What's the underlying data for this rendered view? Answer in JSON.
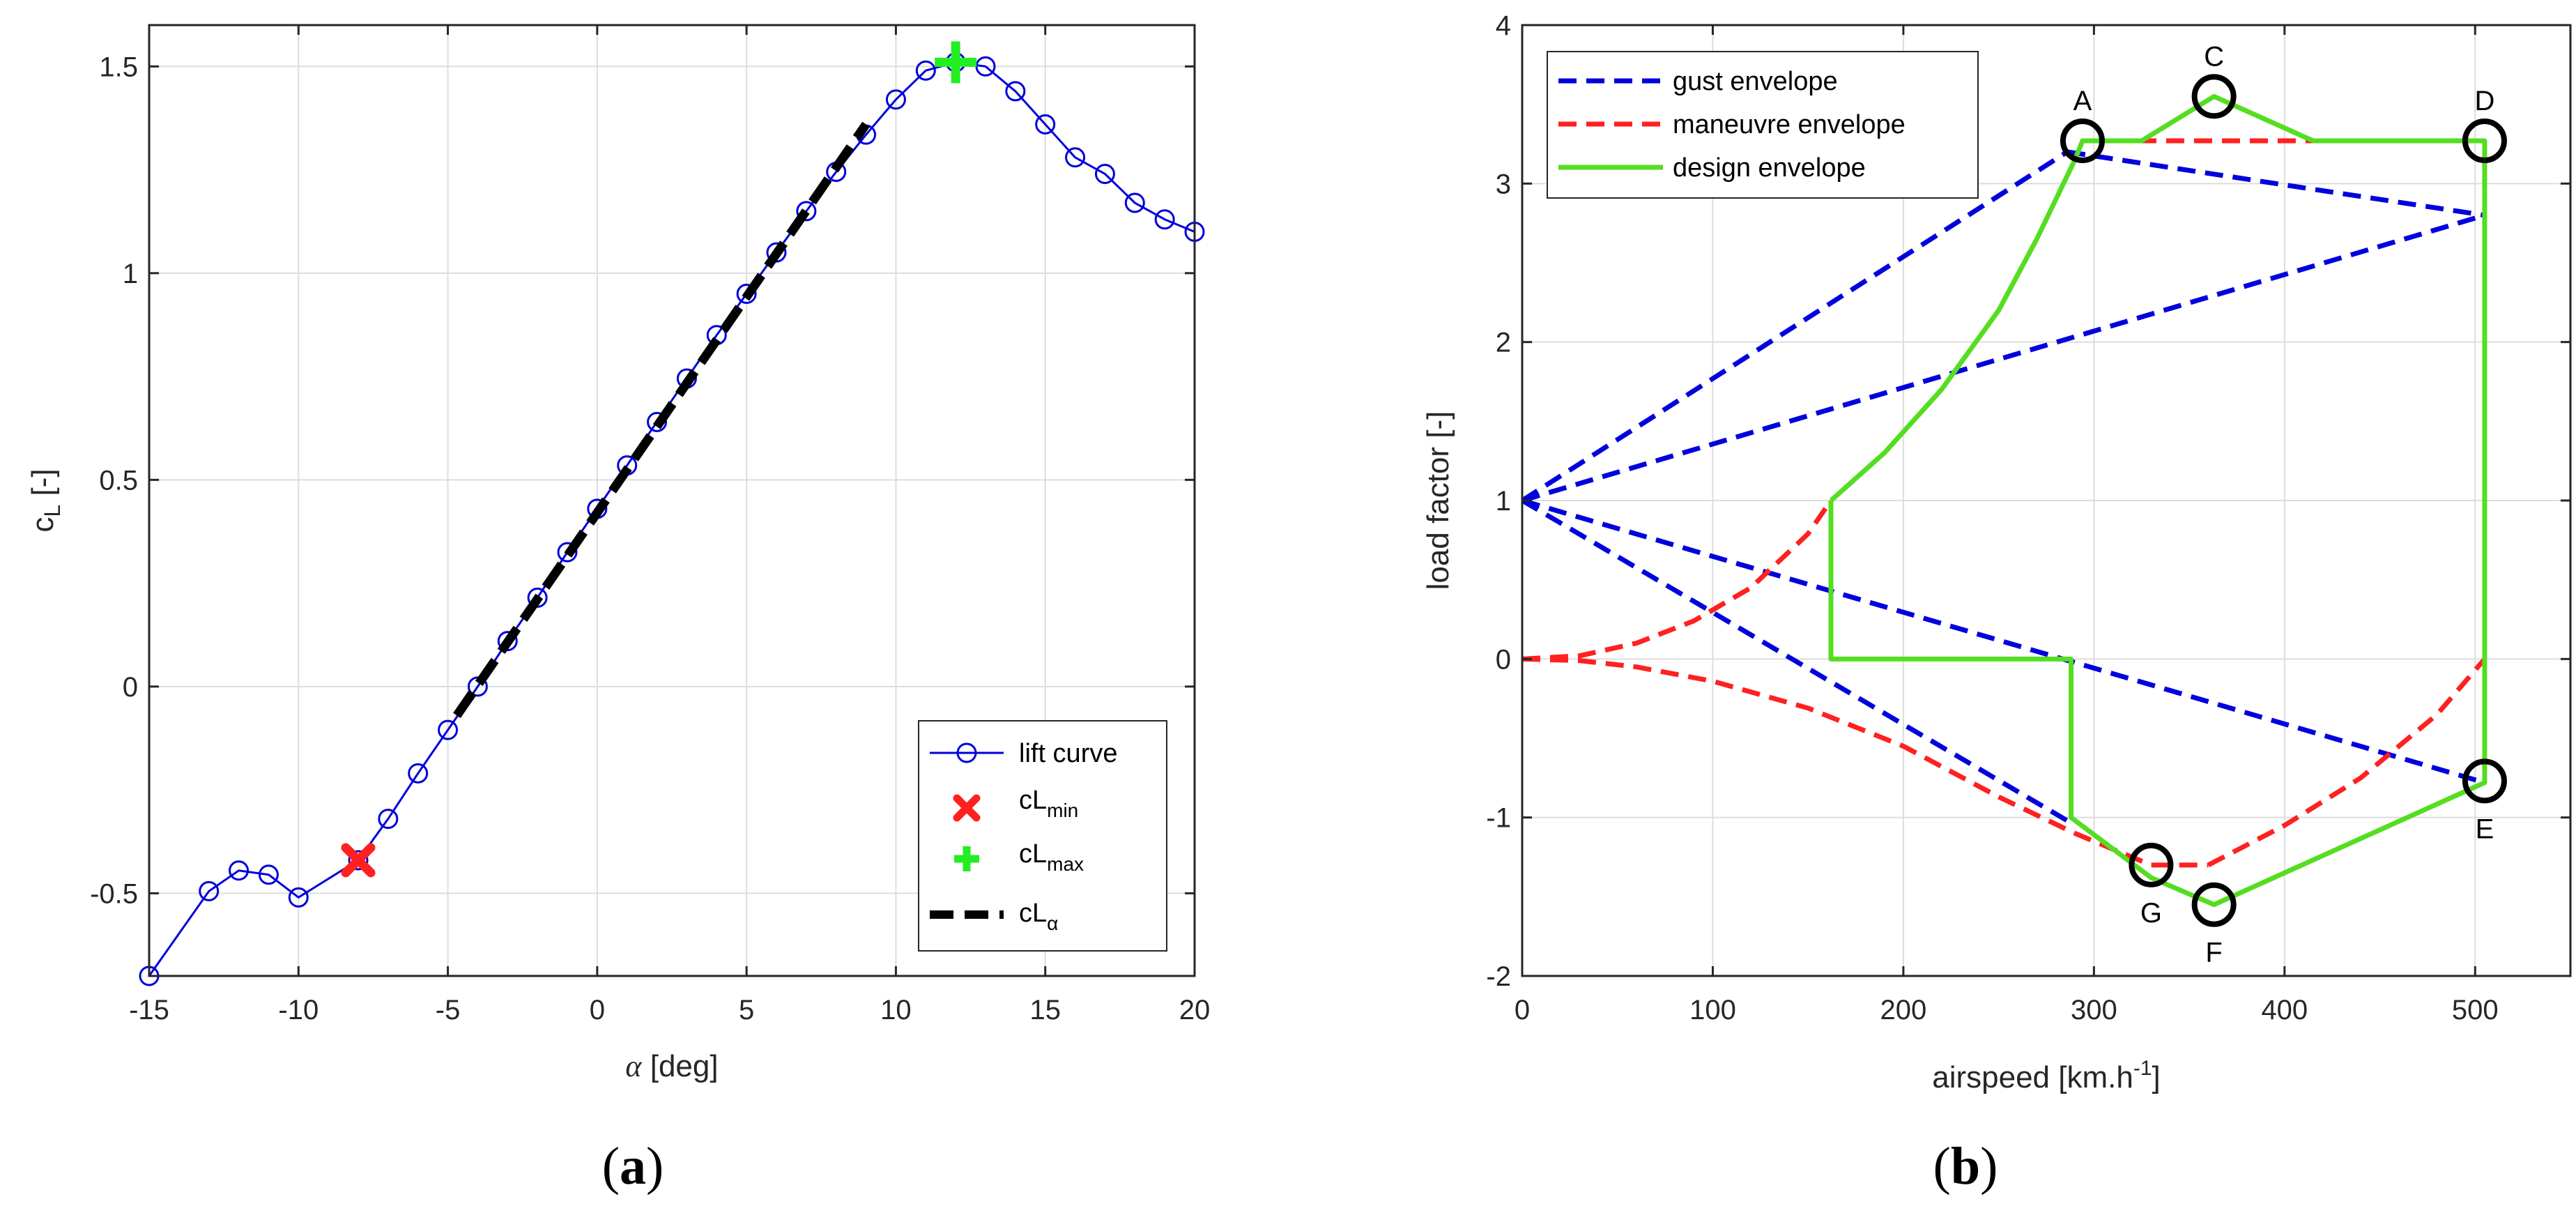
{
  "figure": {
    "caption_a": {
      "open": "(",
      "letter": "a",
      "close": ")"
    },
    "caption_b": {
      "open": "(",
      "letter": "b",
      "close": ")"
    }
  },
  "colors": {
    "lift": "#0000dd",
    "cLmin": "#ff2020",
    "cLmax": "#22ee22",
    "cLalpha": "#000000",
    "gust": "#0000dd",
    "maneuvre": "#ff2020",
    "design": "#55dd22",
    "grid": "#dddddd",
    "axis": "#262626"
  },
  "chart_data": [
    {
      "type": "line",
      "title": "",
      "xlabel_symbol": "α",
      "xlabel_rest": " [deg]",
      "ylabel_main": "c",
      "ylabel_sub": "L",
      "ylabel_rest": " [-]",
      "xlim": [
        -15,
        20
      ],
      "ylim": [
        -0.7,
        1.6
      ],
      "xticks": [
        -15,
        -10,
        -5,
        0,
        5,
        10,
        15,
        20
      ],
      "yticks": [
        -0.5,
        0,
        0.5,
        1,
        1.5
      ],
      "xtick_labels": [
        "-15",
        "-10",
        "-5",
        "0",
        "5",
        "10",
        "15",
        "20"
      ],
      "ytick_labels": [
        "-0.5",
        "0",
        "0.5",
        "1",
        "1.5"
      ],
      "grid": true,
      "legend_position": "bottom-right",
      "series": [
        {
          "name": "lift curve",
          "x": [
            -15,
            -13,
            -12,
            -11,
            -10,
            -8,
            -7,
            -6,
            -5,
            -4,
            -3,
            -2,
            -1,
            0,
            1,
            2,
            3,
            4,
            5,
            6,
            7,
            8,
            9,
            10,
            11,
            12,
            13,
            14,
            15,
            16,
            17,
            18,
            19,
            20
          ],
          "y": [
            -0.7,
            -0.495,
            -0.445,
            -0.455,
            -0.51,
            -0.42,
            -0.32,
            -0.21,
            -0.105,
            0.0,
            0.11,
            0.215,
            0.325,
            0.43,
            0.535,
            0.64,
            0.745,
            0.85,
            0.95,
            1.05,
            1.15,
            1.245,
            1.335,
            1.42,
            1.49,
            1.51,
            1.5,
            1.44,
            1.36,
            1.28,
            1.24,
            1.17,
            1.13,
            1.1
          ]
        },
        {
          "name": "cL",
          "name_sub": "min",
          "x": [
            -8
          ],
          "y": [
            -0.42
          ]
        },
        {
          "name": "cL",
          "name_sub": "max",
          "x": [
            12
          ],
          "y": [
            1.51
          ]
        },
        {
          "name": "cL",
          "name_sub": "α",
          "x": [
            -4.7,
            9.0
          ],
          "y": [
            -0.07,
            1.36
          ]
        }
      ]
    },
    {
      "type": "line",
      "title": "",
      "xlabel_main": "airspeed [km.h",
      "xlabel_sup": "-1",
      "xlabel_rest": "]",
      "ylabel": "load  factor [-]",
      "xlim": [
        0,
        550
      ],
      "ylim": [
        -2,
        4
      ],
      "xticks": [
        0,
        100,
        200,
        300,
        400,
        500
      ],
      "yticks": [
        -2,
        -1,
        0,
        1,
        2,
        3,
        4
      ],
      "xtick_labels": [
        "0",
        "100",
        "200",
        "300",
        "400",
        "500"
      ],
      "ytick_labels": [
        "-2",
        "-1",
        "0",
        "1",
        "2",
        "3",
        "4"
      ],
      "grid": true,
      "legend_position": "top-left",
      "series": [
        {
          "name": "gust envelope",
          "segments": [
            {
              "x": [
                0,
                286
              ],
              "y": [
                1,
                3.2
              ]
            },
            {
              "x": [
                0,
                505
              ],
              "y": [
                1,
                2.8
              ]
            },
            {
              "x": [
                286,
                505
              ],
              "y": [
                3.2,
                2.8
              ]
            },
            {
              "x": [
                0,
                286
              ],
              "y": [
                1,
                -1.02
              ]
            },
            {
              "x": [
                0,
                505
              ],
              "y": [
                1,
                -0.78
              ]
            }
          ]
        },
        {
          "name": "maneuvre envelope",
          "segments": [
            {
              "x": [
                0,
                30,
                60,
                90,
                120,
                150,
                162
              ],
              "y": [
                0,
                0.02,
                0.1,
                0.24,
                0.45,
                0.79,
                1.0
              ]
            },
            {
              "x": [
                0,
                30,
                60,
                100,
                150,
                200,
                250,
                290,
                330,
                360
              ],
              "y": [
                0,
                -0.01,
                -0.05,
                -0.14,
                -0.31,
                -0.55,
                -0.87,
                -1.1,
                -1.3,
                -1.3
              ]
            },
            {
              "x": [
                360,
                400,
                440,
                480,
                505
              ],
              "y": [
                -1.3,
                -1.05,
                -0.75,
                -0.35,
                0
              ]
            },
            {
              "x": [
                294,
                505
              ],
              "y": [
                3.27,
                3.27
              ]
            }
          ]
        },
        {
          "name": "design envelope",
          "segments": [
            {
              "x": [
                162,
                190,
                220,
                250,
                270,
                290,
                294,
                325,
                363,
                415,
                505,
                505,
                505,
                363,
                330,
                288,
                288,
                162,
                162
              ],
              "y": [
                1.0,
                1.3,
                1.7,
                2.2,
                2.65,
                3.15,
                3.27,
                3.27,
                3.55,
                3.27,
                3.27,
                2.8,
                -0.78,
                -1.55,
                -1.38,
                -1.0,
                0,
                0,
                1.0
              ]
            }
          ]
        }
      ],
      "points": [
        {
          "label": "A",
          "x": 294,
          "y": 3.27,
          "label_pos": "above"
        },
        {
          "label": "C",
          "x": 363,
          "y": 3.55,
          "label_pos": "above"
        },
        {
          "label": "D",
          "x": 505,
          "y": 3.27,
          "label_pos": "above"
        },
        {
          "label": "E",
          "x": 505,
          "y": -0.77,
          "label_pos": "below"
        },
        {
          "label": "F",
          "x": 363,
          "y": -1.55,
          "label_pos": "below"
        },
        {
          "label": "G",
          "x": 330,
          "y": -1.3,
          "label_pos": "below"
        }
      ]
    }
  ]
}
